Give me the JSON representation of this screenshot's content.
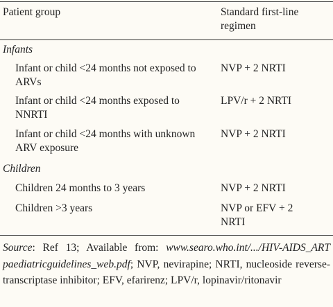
{
  "table": {
    "header": [
      "Patient group",
      "Standard first-line regimen"
    ],
    "sections": [
      {
        "title": "Infants",
        "rows": [
          [
            "Infant or child <24 months not exposed to ARVs",
            "NVP + 2 NRTI"
          ],
          [
            "Infant or child <24 months exposed to NNRTI",
            "LPV/r + 2 NRTI"
          ],
          [
            "Infant or child <24 months with unknown ARV exposure",
            "NVP + 2 NRTI"
          ]
        ]
      },
      {
        "title": "Children",
        "rows": [
          [
            "Children 24 months to 3 years",
            "NVP + 2 NRTI"
          ],
          [
            "Children >3 years",
            "NVP or EFV + 2 NRTI"
          ]
        ]
      }
    ]
  },
  "footnote": {
    "label": "Source",
    "text": ": Ref 13; Available from: ",
    "url": "www.searo.who.int/.../HIV-AIDS_ART paediatricguidelines_web.pdf",
    "rest": "; NVP, nevirapine; NRTI, nucleoside reverse-transcriptase inhibitor; EFV, efarirenz; LPV/r, lopinavir/ritonavir"
  }
}
